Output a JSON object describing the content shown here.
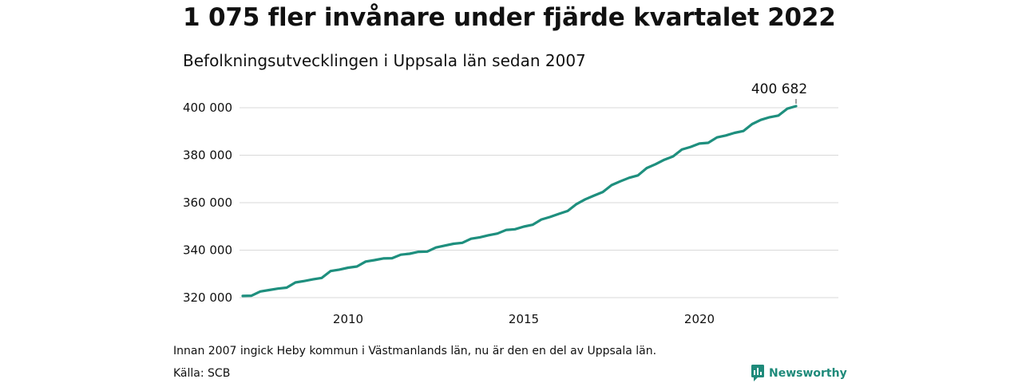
{
  "header": {
    "title": "1 075 fler invånare under fjärde kvartalet 2022",
    "subtitle": "Befolkningsutvecklingen i Uppsala län sedan 2007"
  },
  "footer": {
    "note": "Innan 2007 ingick Heby kommun i Västmanlands län, nu är den en del av Uppsala län.",
    "source": "Källa: SCB",
    "logo_text": "Newsworthy"
  },
  "colors": {
    "line": "#1e8f7e",
    "grid": "#d9d9d9",
    "brand": "#1e8a7a"
  },
  "chart_data": {
    "type": "line",
    "title": "1 075 fler invånare under fjärde kvartalet 2022",
    "subtitle": "Befolkningsutvecklingen i Uppsala län sedan 2007",
    "xlabel": "",
    "ylabel": "",
    "ylim": [
      316000,
      404000
    ],
    "xlim": [
      "2007Q1",
      "2023Q4"
    ],
    "y_ticks": [
      320000,
      340000,
      360000,
      380000,
      400000
    ],
    "y_tick_labels": [
      "320 000",
      "340 000",
      "360 000",
      "380 000",
      "400 000"
    ],
    "x_ticks": [
      "2010Q1",
      "2015Q1",
      "2020Q1"
    ],
    "x_tick_labels": [
      "2010",
      "2015",
      "2020"
    ],
    "grid": true,
    "legend": "none",
    "end_label": "400 682",
    "series": [
      {
        "x": [
          "2007Q1",
          "2007Q2",
          "2007Q3",
          "2007Q4",
          "2008Q1",
          "2008Q2",
          "2008Q3",
          "2008Q4",
          "2009Q1",
          "2009Q2",
          "2009Q3",
          "2009Q4",
          "2010Q1",
          "2010Q2",
          "2010Q3",
          "2010Q4",
          "2011Q1",
          "2011Q2",
          "2011Q3",
          "2011Q4",
          "2012Q1",
          "2012Q2",
          "2012Q3",
          "2012Q4",
          "2013Q1",
          "2013Q2",
          "2013Q3",
          "2013Q4",
          "2014Q1",
          "2014Q2",
          "2014Q3",
          "2014Q4",
          "2015Q1",
          "2015Q2",
          "2015Q3",
          "2015Q4",
          "2016Q1",
          "2016Q2",
          "2016Q3",
          "2016Q4",
          "2017Q1",
          "2017Q2",
          "2017Q3",
          "2017Q4",
          "2018Q1",
          "2018Q2",
          "2018Q3",
          "2018Q4",
          "2019Q1",
          "2019Q2",
          "2019Q3",
          "2019Q4",
          "2020Q1",
          "2020Q2",
          "2020Q3",
          "2020Q4",
          "2021Q1",
          "2021Q2",
          "2021Q3",
          "2021Q4",
          "2022Q1",
          "2022Q2",
          "2022Q3",
          "2022Q4"
        ],
        "values": [
          320700,
          320800,
          322600,
          323200,
          323800,
          324200,
          326400,
          327000,
          327700,
          328300,
          331200,
          331800,
          332600,
          333100,
          335200,
          335800,
          336500,
          336600,
          338100,
          338500,
          339300,
          339400,
          341100,
          341900,
          342700,
          343100,
          344800,
          345400,
          346300,
          347000,
          348500,
          348800,
          349900,
          350700,
          352900,
          354000,
          355300,
          356500,
          359400,
          361400,
          363000,
          364500,
          367400,
          369000,
          370500,
          371500,
          374600,
          376200,
          378100,
          379500,
          382400,
          383500,
          384900,
          385200,
          387500,
          388300,
          389400,
          390200,
          393100,
          394900,
          396000,
          396700,
          399600,
          400682
        ]
      }
    ]
  }
}
